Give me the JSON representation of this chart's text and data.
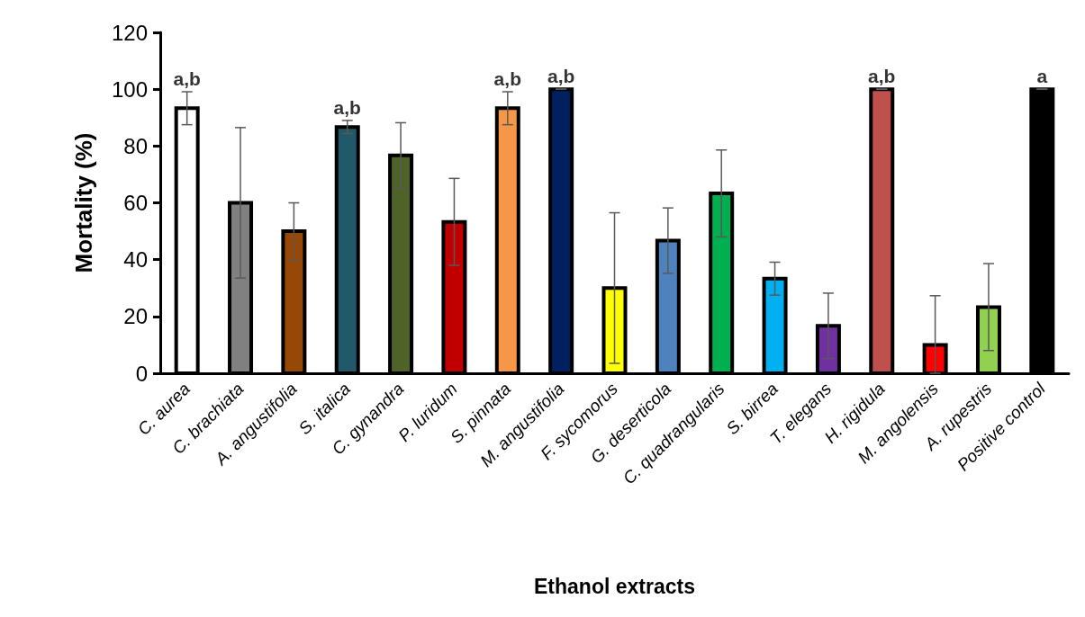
{
  "chart_data": {
    "type": "bar",
    "xlabel": "Ethanol extracts",
    "ylabel": "Mortality (%)",
    "categories": [
      "C. aurea",
      "C. brachiata",
      "A. angustifolia",
      "S. italica",
      "C. gynandra",
      "P. luridum",
      "S. pinnata",
      "M. angustifolia",
      "F. sycomorus",
      "G. deserticola",
      "C. quadrangularis",
      "S. birrea",
      "T. elegans",
      "H. rigidula",
      "M. angolensis",
      "A. rupestris",
      "Positive control"
    ],
    "values": [
      93.3,
      60,
      50,
      86.7,
      76.7,
      53.3,
      93.3,
      100,
      30,
      46.7,
      63.3,
      33.3,
      16.7,
      100,
      10,
      23.3,
      100
    ],
    "errors": [
      5.8,
      26.5,
      10,
      2.3,
      11.5,
      15.3,
      5.8,
      0,
      26.5,
      11.5,
      15.3,
      5.8,
      11.5,
      0,
      [
        0,
        27.3
      ],
      15.3,
      0
    ],
    "colors": [
      "#ffffff",
      "#808080",
      "#974706",
      "#215968",
      "#4f6228",
      "#c00000",
      "#f79646",
      "#002060",
      "#ffff00",
      "#4f81bd",
      "#00b050",
      "#00b0f0",
      "#7030a0",
      "#c0504d",
      "#ff0000",
      "#92d050",
      "#000000"
    ],
    "ylim": [
      0,
      120
    ],
    "yticks": [
      0,
      20,
      40,
      60,
      80,
      100,
      120
    ],
    "grid": false,
    "annotations": [
      {
        "text": "a,b",
        "x": "C. aurea",
        "y": 93.3
      },
      {
        "text": "a,b",
        "x": "S. italica",
        "y": 86.7
      },
      {
        "text": "a,b",
        "x": "S. pinnata",
        "y": 93.3
      },
      {
        "text": "a,b",
        "x": "M. angustifolia",
        "y": 100
      },
      {
        "text": "a,b",
        "x": "H. rigidula",
        "y": 100
      },
      {
        "text": "a",
        "x": "Positive control",
        "y": 100
      }
    ]
  }
}
